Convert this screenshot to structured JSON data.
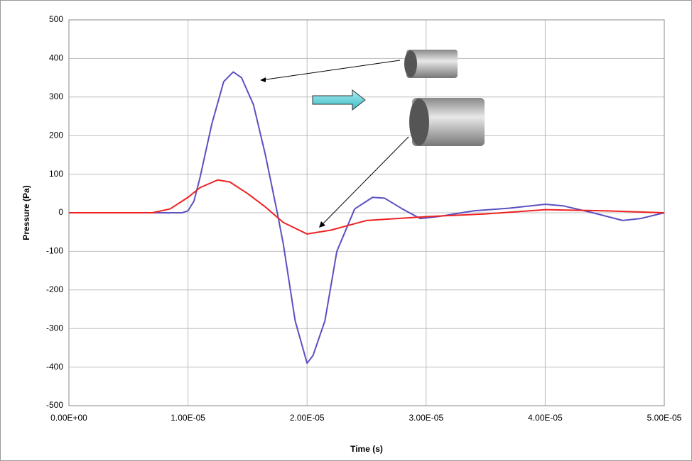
{
  "chart_data": {
    "type": "line",
    "ylabel": "Pressure (Pa)",
    "xlabel": "Time (s)",
    "xlim": [
      0,
      5e-05
    ],
    "ylim": [
      -500,
      500
    ],
    "xticks": [
      {
        "value": 0,
        "label": "0.00E+00"
      },
      {
        "value": 1e-05,
        "label": "1.00E-05"
      },
      {
        "value": 2e-05,
        "label": "2.00E-05"
      },
      {
        "value": 3e-05,
        "label": "3.00E-05"
      },
      {
        "value": 4e-05,
        "label": "4.00E-05"
      },
      {
        "value": 5e-05,
        "label": "5.00E-05"
      }
    ],
    "yticks": [
      -500,
      -400,
      -300,
      -200,
      -100,
      0,
      100,
      200,
      300,
      400,
      500
    ],
    "grid": true,
    "series": [
      {
        "color": "#5a50c0",
        "x": [
          0,
          5e-06,
          8e-06,
          9.5e-06,
          1e-05,
          1.05e-05,
          1.1e-05,
          1.2e-05,
          1.3e-05,
          1.38e-05,
          1.45e-05,
          1.55e-05,
          1.65e-05,
          1.75e-05,
          1.8e-05,
          1.9e-05,
          2e-05,
          2.05e-05,
          2.15e-05,
          2.25e-05,
          2.4e-05,
          2.55e-05,
          2.65e-05,
          2.8e-05,
          2.95e-05,
          3.1e-05,
          3.4e-05,
          3.7e-05,
          4e-05,
          4.15e-05,
          4.4e-05,
          4.65e-05,
          4.8e-05,
          5e-05
        ],
        "values": [
          0,
          0,
          0,
          0,
          5,
          30,
          90,
          230,
          340,
          365,
          350,
          280,
          150,
          0,
          -80,
          -280,
          -390,
          -370,
          -280,
          -100,
          10,
          40,
          38,
          10,
          -15,
          -10,
          5,
          12,
          22,
          18,
          0,
          -20,
          -15,
          0
        ]
      },
      {
        "color": "#ee2222",
        "x": [
          0,
          7e-06,
          8.5e-06,
          1e-05,
          1.1e-05,
          1.25e-05,
          1.35e-05,
          1.5e-05,
          1.65e-05,
          1.8e-05,
          2e-05,
          2.2e-05,
          2.5e-05,
          3e-05,
          3.5e-05,
          4e-05,
          4.5e-05,
          5e-05
        ],
        "values": [
          0,
          0,
          10,
          40,
          65,
          85,
          80,
          50,
          15,
          -25,
          -55,
          -45,
          -20,
          -10,
          -3,
          8,
          5,
          0
        ]
      }
    ]
  }
}
